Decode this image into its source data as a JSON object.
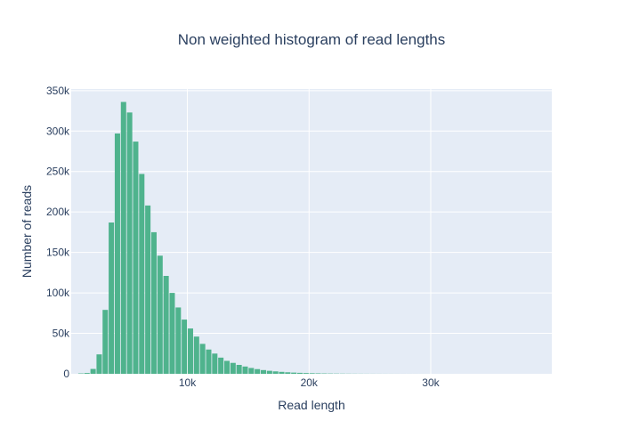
{
  "chart_data": {
    "type": "bar",
    "title": "Non weighted histogram of read lengths",
    "xlabel": "Read length",
    "ylabel": "Number of reads",
    "xlim": [
      450,
      39950
    ],
    "ylim": [
      0,
      352000
    ],
    "x_ticks": [
      {
        "value": 10000,
        "label": "10k"
      },
      {
        "value": 20000,
        "label": "20k"
      },
      {
        "value": 30000,
        "label": "30k"
      }
    ],
    "y_ticks": [
      {
        "value": 0,
        "label": "0"
      },
      {
        "value": 50000,
        "label": "50k"
      },
      {
        "value": 100000,
        "label": "100k"
      },
      {
        "value": 150000,
        "label": "150k"
      },
      {
        "value": 200000,
        "label": "200k"
      },
      {
        "value": 250000,
        "label": "250k"
      },
      {
        "value": 300000,
        "label": "300k"
      },
      {
        "value": 350000,
        "label": "350k"
      }
    ],
    "grid": true,
    "bin_width": 500,
    "bin_start": 1000,
    "values": [
      500,
      1000,
      6000,
      24000,
      79000,
      187000,
      297000,
      336000,
      323000,
      287000,
      247000,
      208000,
      175000,
      146000,
      121000,
      100000,
      82000,
      67000,
      56000,
      46000,
      37000,
      30000,
      25000,
      20000,
      16000,
      13500,
      11000,
      9000,
      7200,
      5800,
      4600,
      3700,
      3000,
      2400,
      1900,
      1500,
      1200,
      950,
      750,
      600,
      480,
      380,
      300,
      240,
      190,
      150,
      120,
      95,
      75,
      60,
      48,
      38,
      30,
      24,
      19,
      15,
      12,
      10,
      8,
      6,
      5,
      4,
      3,
      3,
      2,
      2,
      2,
      1,
      1,
      1,
      1,
      1,
      1,
      1,
      1,
      1
    ],
    "colors": {
      "bar_fill": "#4fb38d",
      "plot_bg": "#e5ecf6",
      "grid": "#ffffff",
      "text": "#2a3f5f"
    }
  }
}
